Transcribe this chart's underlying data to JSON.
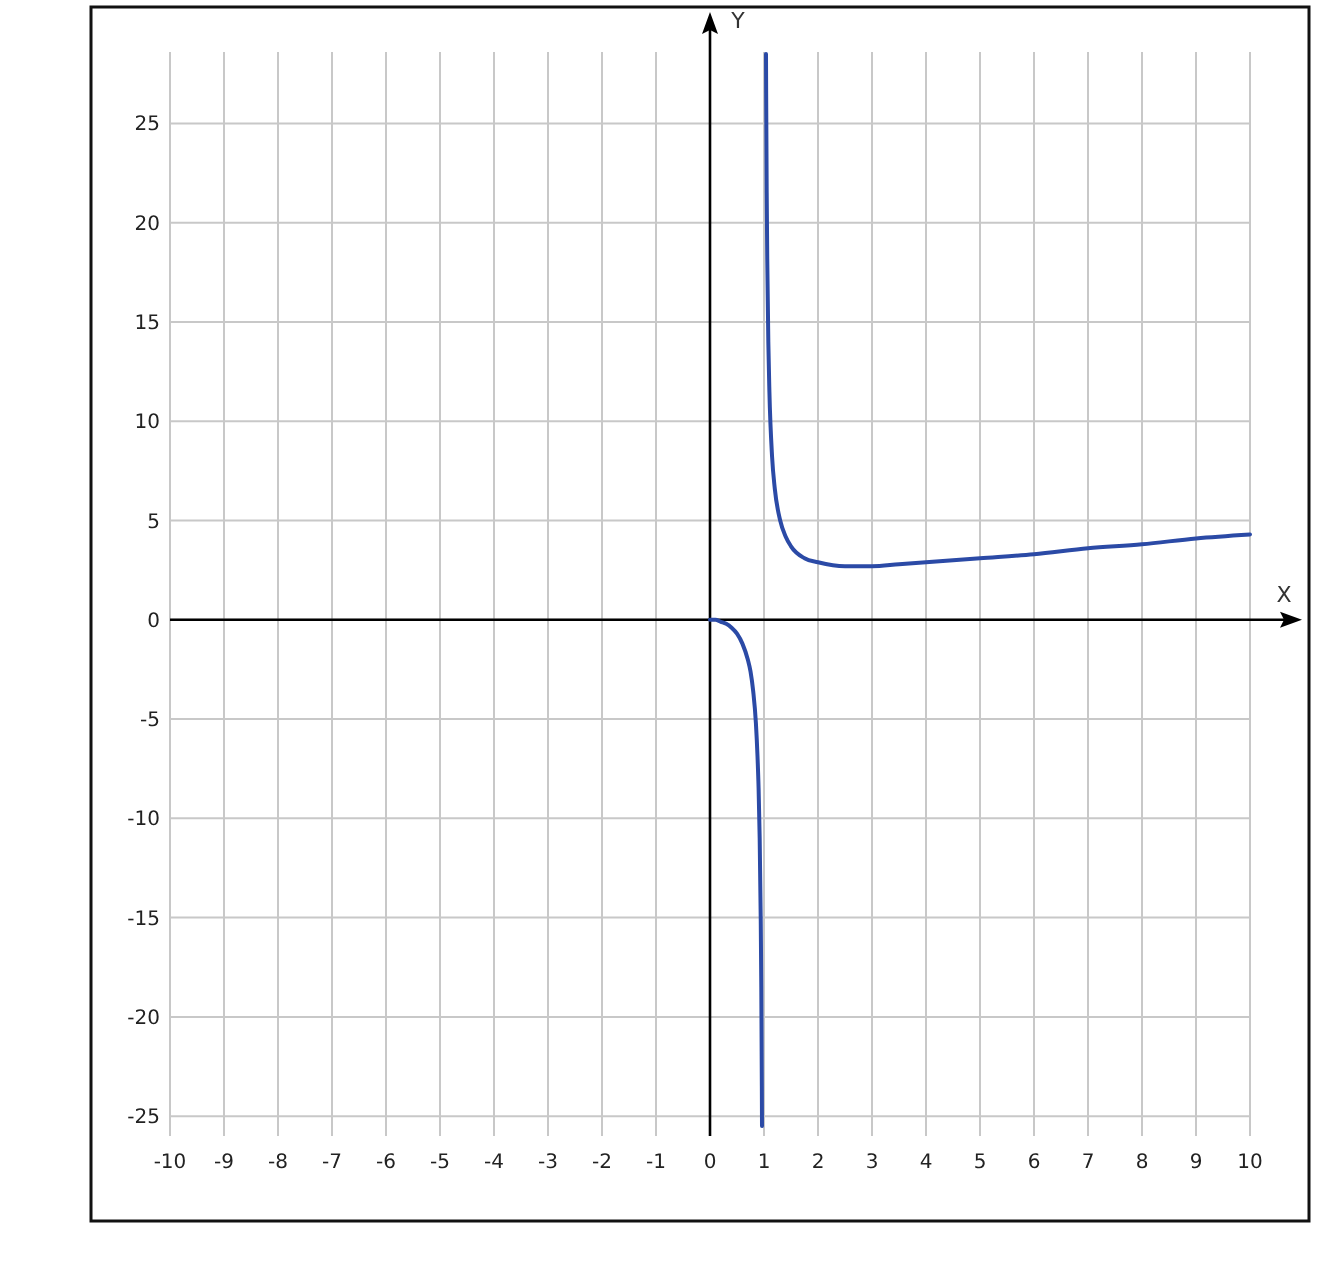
{
  "chart_data": {
    "type": "line",
    "xlabel": "X",
    "ylabel": "Y",
    "x": [
      0,
      0.1,
      0.2,
      0.3,
      0.4,
      0.5,
      0.6,
      0.7,
      0.75,
      0.8,
      0.85,
      0.88,
      0.9,
      0.92,
      0.94,
      0.95,
      0.96,
      0.963,
      1,
      1.037,
      1.04,
      1.05,
      1.06,
      1.08,
      1.1,
      1.15,
      1.2,
      1.3,
      1.4,
      1.5,
      1.75,
      2,
      2.5,
      2.72,
      3,
      3.5,
      4,
      5,
      6,
      7,
      8,
      9,
      10
    ],
    "series": [
      {
        "color": "#2b4aa6",
        "values": [
          0,
          0,
          -0.1,
          -0.2,
          -0.4,
          -0.7,
          -1.2,
          -2.0,
          -2.6,
          -3.6,
          -5.2,
          -6.9,
          -8.5,
          -11.0,
          -15.2,
          -18.5,
          -23.5,
          -25.5,
          null,
          28.5,
          26.5,
          21.5,
          18.2,
          14.0,
          11.5,
          8.2,
          6.6,
          5.0,
          4.2,
          3.7,
          3.1,
          2.9,
          2.7,
          2.7,
          2.7,
          2.8,
          2.9,
          3.1,
          3.3,
          3.6,
          3.8,
          4.1,
          4.3
        ]
      }
    ],
    "xlim": [
      -10,
      10
    ],
    "ylim": [
      -26,
      28.6
    ],
    "xticks": [
      -10,
      -9,
      -8,
      -7,
      -6,
      -5,
      -4,
      -3,
      -2,
      -1,
      0,
      1,
      2,
      3,
      4,
      5,
      6,
      7,
      8,
      9,
      10
    ],
    "yticks": [
      -25,
      -20,
      -15,
      -10,
      -5,
      0,
      5,
      10,
      15,
      20,
      25
    ],
    "grid": true
  }
}
